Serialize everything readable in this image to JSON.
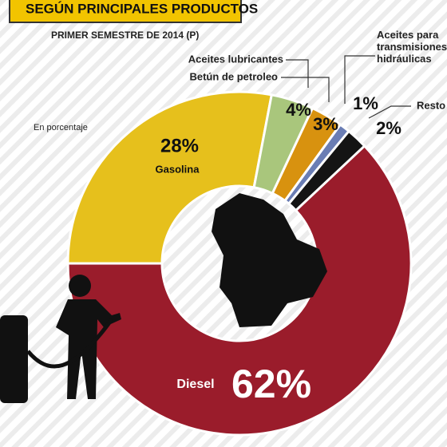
{
  "chart_data": {
    "type": "donut",
    "title": "SEGÚN PRINCIPALES PRODUCTOS",
    "subtitle": "PRIMER SEMESTRE DE 2014 (P)",
    "note": "En porcentaje",
    "categories": [
      "Gasolina",
      "Aceites lubricantes",
      "Betún de petroleo",
      "Aceites para\ntransmisiones\nhidráulicas",
      "Resto",
      "Diesel"
    ],
    "values": [
      28,
      4,
      3,
      1,
      2,
      62
    ],
    "value_labels": [
      "28%",
      "4%",
      "3%",
      "1%",
      "2%",
      "62%"
    ],
    "colors": [
      "#e6c01c",
      "#a9c67c",
      "#d8920f",
      "#6a7db4",
      "#141414",
      "#9a1c2b"
    ]
  }
}
